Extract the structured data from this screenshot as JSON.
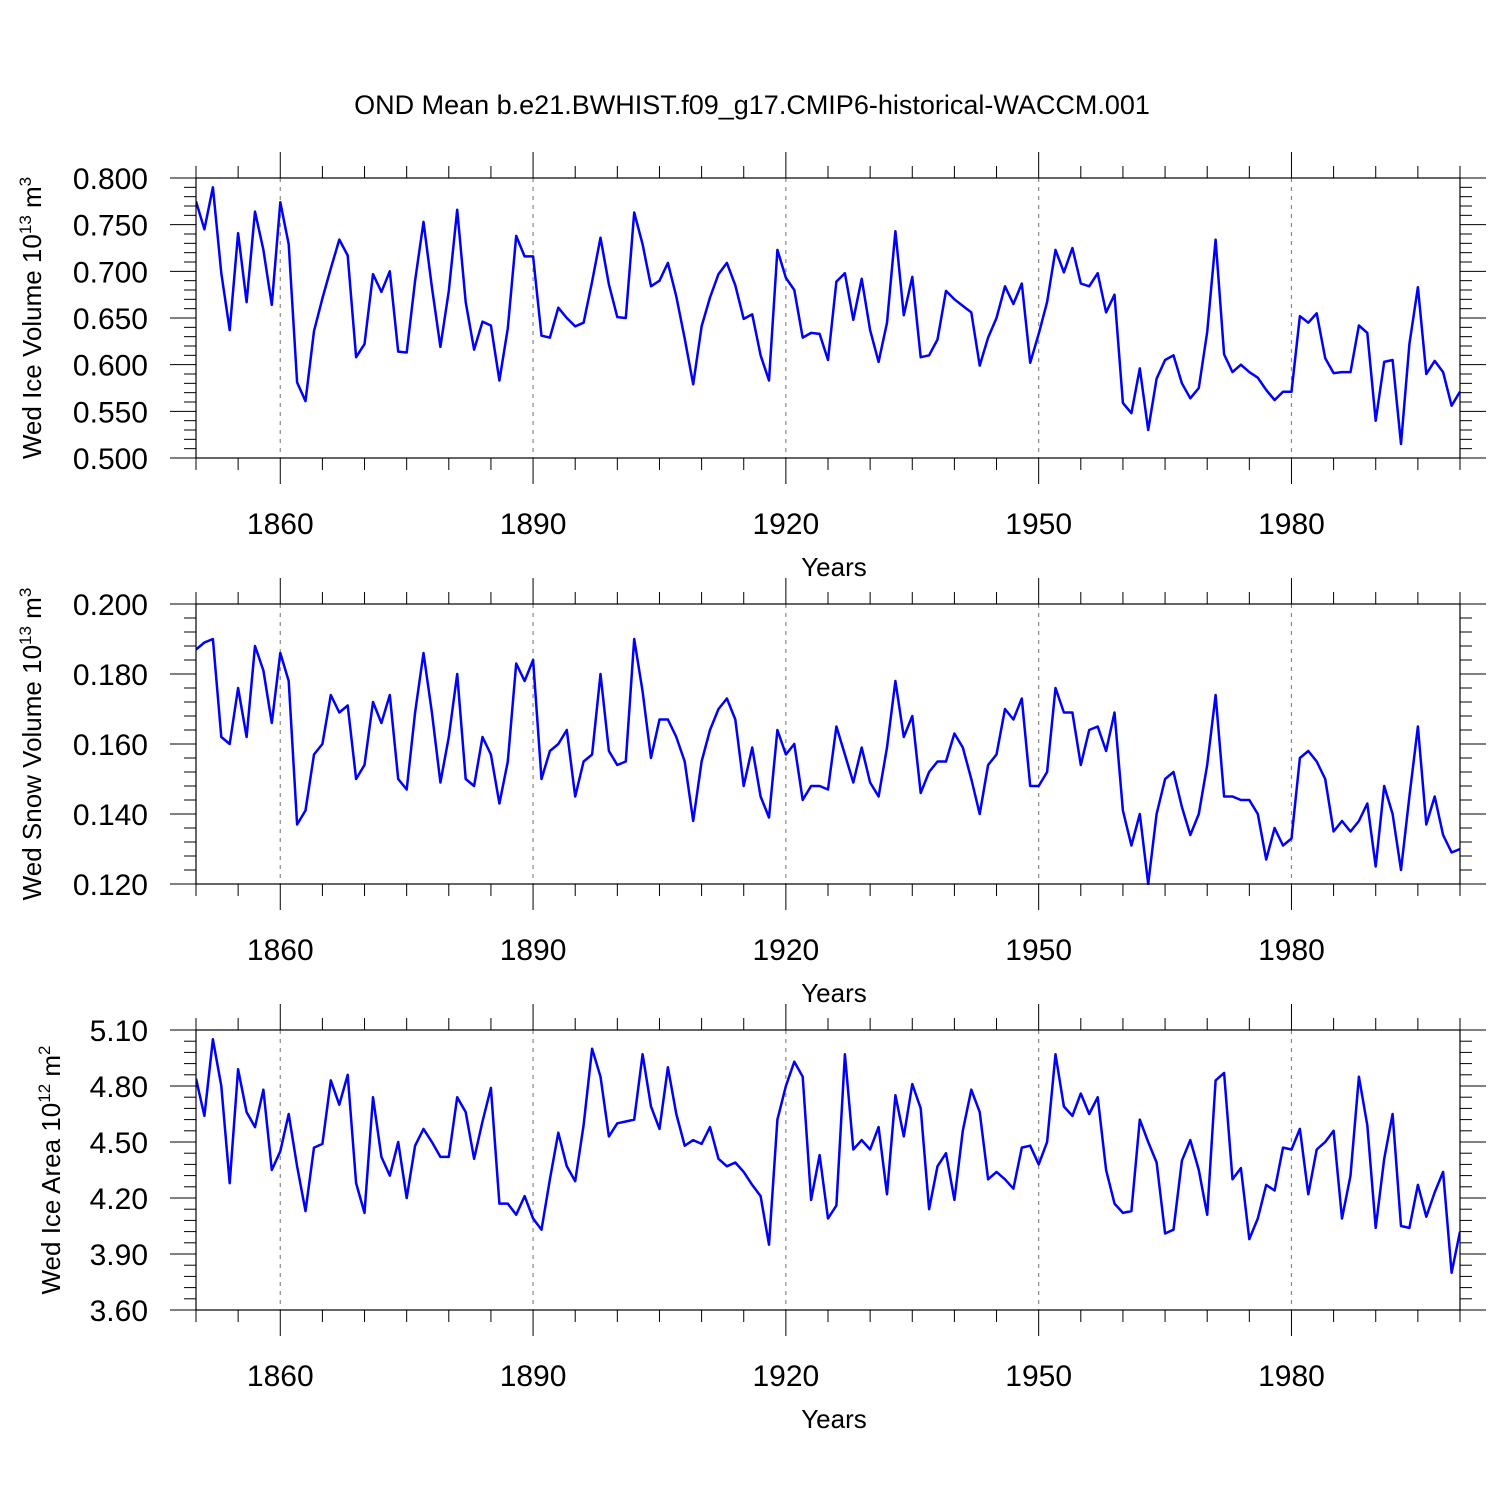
{
  "title": "OND Mean b.e21.BWHIST.f09_g17.CMIP6-historical-WACCM.001",
  "chart_data": [
    {
      "type": "line",
      "title": "OND Mean b.e21.BWHIST.f09_g17.CMIP6-historical-WACCM.001",
      "xlabel": "Years",
      "ylabel": {
        "main": "Wed Ice Volume 10",
        "sup": "13",
        "unit": " m",
        "unit_sup": "3"
      },
      "xlim": [
        1850,
        2000
      ],
      "ylim": [
        0.5,
        0.8
      ],
      "yticks": [
        "0.500",
        "0.550",
        "0.600",
        "0.650",
        "0.700",
        "0.750",
        "0.800"
      ],
      "xticks": [
        "1860",
        "1890",
        "1920",
        "1950",
        "1980"
      ],
      "x_start": 1850,
      "series": [
        {
          "name": "Wed Ice Volume",
          "color": "#0000ff",
          "values": [
            0.775,
            0.745,
            0.79,
            0.698,
            0.637,
            0.741,
            0.667,
            0.764,
            0.723,
            0.664,
            0.774,
            0.729,
            0.581,
            0.561,
            0.636,
            0.671,
            0.703,
            0.734,
            0.717,
            0.608,
            0.622,
            0.697,
            0.678,
            0.7,
            0.614,
            0.613,
            0.69,
            0.753,
            0.683,
            0.619,
            0.679,
            0.766,
            0.667,
            0.616,
            0.646,
            0.642,
            0.583,
            0.639,
            0.738,
            0.716,
            0.716,
            0.631,
            0.629,
            0.661,
            0.65,
            0.641,
            0.645,
            0.689,
            0.736,
            0.686,
            0.651,
            0.65,
            0.763,
            0.729,
            0.684,
            0.69,
            0.709,
            0.673,
            0.628,
            0.579,
            0.641,
            0.672,
            0.697,
            0.709,
            0.685,
            0.649,
            0.654,
            0.61,
            0.583,
            0.723,
            0.693,
            0.68,
            0.629,
            0.634,
            0.633,
            0.605,
            0.689,
            0.698,
            0.648,
            0.692,
            0.637,
            0.603,
            0.645,
            0.743,
            0.653,
            0.694,
            0.608,
            0.61,
            0.627,
            0.679,
            0.67,
            0.663,
            0.656,
            0.599,
            0.629,
            0.65,
            0.684,
            0.665,
            0.687,
            0.602,
            0.633,
            0.667,
            0.723,
            0.699,
            0.725,
            0.687,
            0.684,
            0.698,
            0.656,
            0.675,
            0.559,
            0.548,
            0.596,
            0.53,
            0.585,
            0.605,
            0.61,
            0.58,
            0.564,
            0.575,
            0.635,
            0.734,
            0.611,
            0.592,
            0.6,
            0.592,
            0.586,
            0.573,
            0.562,
            0.571,
            0.571,
            0.652,
            0.645,
            0.655,
            0.607,
            0.591,
            0.592,
            0.592,
            0.642,
            0.634,
            0.54,
            0.603,
            0.605,
            0.515,
            0.622,
            0.683,
            0.59,
            0.604,
            0.592,
            0.556,
            0.571
          ]
        }
      ]
    },
    {
      "type": "line",
      "xlabel": "Years",
      "ylabel": {
        "main": "Wed Snow Volume 10",
        "sup": "13",
        "unit": " m",
        "unit_sup": "3"
      },
      "xlim": [
        1850,
        2000
      ],
      "ylim": [
        0.12,
        0.2
      ],
      "yticks": [
        "0.120",
        "0.140",
        "0.160",
        "0.180",
        "0.200"
      ],
      "xticks": [
        "1860",
        "1890",
        "1920",
        "1950",
        "1980"
      ],
      "x_start": 1850,
      "series": [
        {
          "name": "Wed Snow Volume",
          "color": "#0000ff",
          "values": [
            0.187,
            0.189,
            0.19,
            0.162,
            0.16,
            0.176,
            0.162,
            0.188,
            0.181,
            0.166,
            0.186,
            0.178,
            0.137,
            0.141,
            0.157,
            0.16,
            0.174,
            0.169,
            0.171,
            0.15,
            0.154,
            0.172,
            0.166,
            0.174,
            0.15,
            0.147,
            0.169,
            0.186,
            0.169,
            0.149,
            0.162,
            0.18,
            0.15,
            0.148,
            0.162,
            0.157,
            0.143,
            0.155,
            0.183,
            0.178,
            0.184,
            0.15,
            0.158,
            0.16,
            0.164,
            0.145,
            0.155,
            0.157,
            0.18,
            0.158,
            0.154,
            0.155,
            0.19,
            0.175,
            0.156,
            0.167,
            0.167,
            0.162,
            0.155,
            0.138,
            0.155,
            0.164,
            0.17,
            0.173,
            0.167,
            0.148,
            0.159,
            0.145,
            0.139,
            0.164,
            0.157,
            0.16,
            0.144,
            0.148,
            0.148,
            0.147,
            0.165,
            0.157,
            0.149,
            0.159,
            0.149,
            0.145,
            0.159,
            0.178,
            0.162,
            0.168,
            0.146,
            0.152,
            0.155,
            0.155,
            0.163,
            0.159,
            0.15,
            0.14,
            0.154,
            0.157,
            0.17,
            0.167,
            0.173,
            0.148,
            0.148,
            0.152,
            0.176,
            0.169,
            0.169,
            0.154,
            0.164,
            0.165,
            0.158,
            0.169,
            0.141,
            0.131,
            0.14,
            0.12,
            0.14,
            0.15,
            0.152,
            0.142,
            0.134,
            0.14,
            0.154,
            0.174,
            0.145,
            0.145,
            0.144,
            0.144,
            0.14,
            0.127,
            0.136,
            0.131,
            0.133,
            0.156,
            0.158,
            0.155,
            0.15,
            0.135,
            0.138,
            0.135,
            0.138,
            0.143,
            0.125,
            0.148,
            0.14,
            0.124,
            0.145,
            0.165,
            0.137,
            0.145,
            0.134,
            0.129,
            0.13
          ]
        }
      ]
    },
    {
      "type": "line",
      "xlabel": "Years",
      "ylabel": {
        "main": "Wed Ice Area 10",
        "sup": "12",
        "unit": " m",
        "unit_sup": "2"
      },
      "xlim": [
        1850,
        2000
      ],
      "ylim": [
        3.6,
        5.1
      ],
      "yticks": [
        "3.60",
        "3.90",
        "4.20",
        "4.50",
        "4.80",
        "5.10"
      ],
      "xticks": [
        "1860",
        "1890",
        "1920",
        "1950",
        "1980"
      ],
      "x_start": 1850,
      "series": [
        {
          "name": "Wed Ice Area",
          "color": "#0000ff",
          "values": [
            4.84,
            4.64,
            5.05,
            4.8,
            4.28,
            4.89,
            4.66,
            4.58,
            4.78,
            4.35,
            4.45,
            4.65,
            4.37,
            4.13,
            4.47,
            4.49,
            4.83,
            4.7,
            4.86,
            4.28,
            4.12,
            4.74,
            4.42,
            4.32,
            4.5,
            4.2,
            4.48,
            4.57,
            4.5,
            4.42,
            4.42,
            4.74,
            4.66,
            4.41,
            4.61,
            4.79,
            4.17,
            4.17,
            4.11,
            4.21,
            4.09,
            4.03,
            4.3,
            4.55,
            4.37,
            4.29,
            4.59,
            5.0,
            4.85,
            4.53,
            4.6,
            4.61,
            4.62,
            4.97,
            4.69,
            4.57,
            4.9,
            4.65,
            4.48,
            4.51,
            4.49,
            4.58,
            4.41,
            4.37,
            4.39,
            4.34,
            4.27,
            4.21,
            3.95,
            4.62,
            4.8,
            4.93,
            4.85,
            4.19,
            4.43,
            4.09,
            4.16,
            4.97,
            4.46,
            4.51,
            4.46,
            4.58,
            4.22,
            4.75,
            4.53,
            4.81,
            4.68,
            4.14,
            4.37,
            4.44,
            4.19,
            4.56,
            4.78,
            4.66,
            4.3,
            4.34,
            4.3,
            4.25,
            4.47,
            4.48,
            4.38,
            4.5,
            4.97,
            4.69,
            4.64,
            4.76,
            4.65,
            4.74,
            4.35,
            4.17,
            4.12,
            4.13,
            4.62,
            4.5,
            4.39,
            4.01,
            4.03,
            4.4,
            4.51,
            4.35,
            4.11,
            4.83,
            4.87,
            4.3,
            4.36,
            3.98,
            4.09,
            4.27,
            4.24,
            4.47,
            4.46,
            4.57,
            4.22,
            4.46,
            4.5,
            4.56,
            4.09,
            4.32,
            4.85,
            4.59,
            4.04,
            4.41,
            4.65,
            4.05,
            4.04,
            4.27,
            4.1,
            4.23,
            4.34,
            3.8,
            4.02
          ]
        }
      ]
    }
  ]
}
